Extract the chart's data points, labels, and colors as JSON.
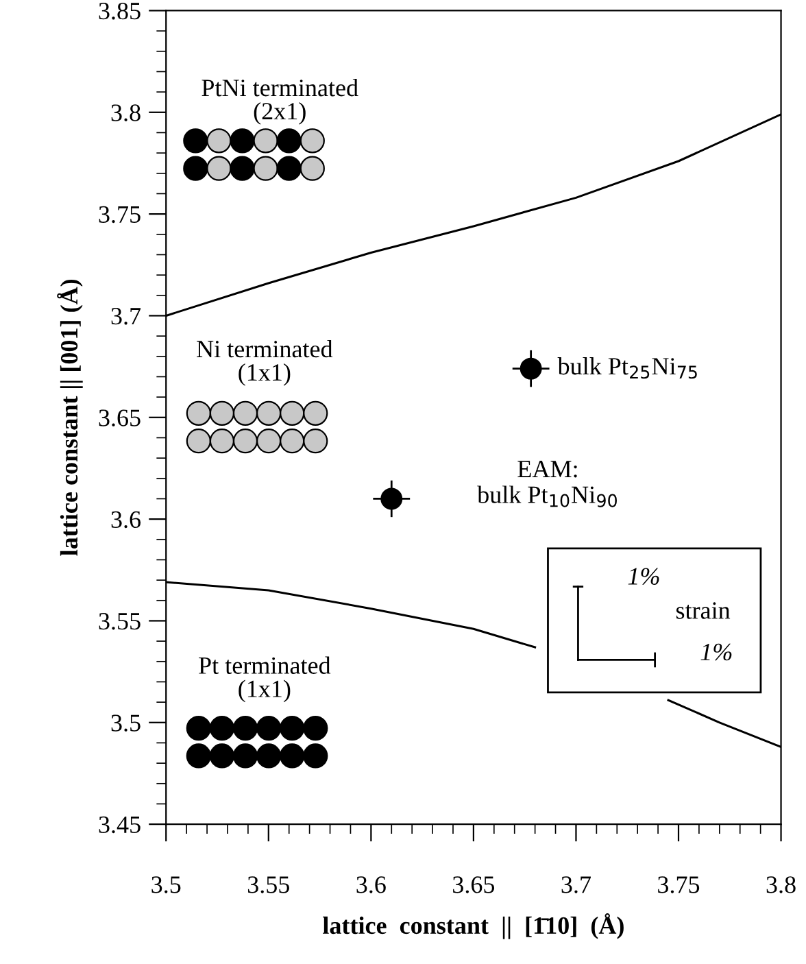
{
  "chart_data": {
    "type": "line",
    "xlabel": "lattice  constant  ||  [1̄10]  (Å)",
    "ylabel": "lattice constant || [001] (Å)",
    "xlim": [
      3.5,
      3.8
    ],
    "ylim": [
      3.45,
      3.85
    ],
    "xticks": [
      3.5,
      3.55,
      3.6,
      3.65,
      3.7,
      3.75,
      3.8
    ],
    "yticks": [
      3.45,
      3.5,
      3.55,
      3.6,
      3.65,
      3.7,
      3.75,
      3.8,
      3.85
    ],
    "grid": false,
    "legend": false,
    "series": [
      {
        "type": "line",
        "color": "#000000",
        "x": [
          3.5,
          3.55,
          3.6,
          3.65,
          3.7,
          3.75,
          3.8
        ],
        "values": [
          3.7,
          3.716,
          3.731,
          3.744,
          3.758,
          3.776,
          3.799
        ]
      },
      {
        "type": "line",
        "color": "#000000",
        "x": [
          3.5,
          3.55,
          3.6,
          3.65,
          3.68,
          3.71,
          3.745,
          3.77,
          3.8
        ],
        "values": [
          3.569,
          3.565,
          3.556,
          3.546,
          3.537,
          null,
          3.511,
          3.5,
          3.488
        ]
      },
      {
        "type": "scatter",
        "color": "#000000",
        "marker": "circle",
        "x": [
          3.61,
          3.678
        ],
        "values": [
          3.61,
          3.674
        ],
        "errors": [
          0.009,
          0.009
        ],
        "xerrors": [
          0.009,
          0.009
        ]
      }
    ],
    "annotations": [
      "PtNi terminated\n(2x1)",
      "Ni terminated\n(1x1)",
      "Pt terminated\n(1x1)",
      {
        "text": "bulk Pt$_{25}$Ni$_{75}$",
        "x": 3.678,
        "y": 3.674
      },
      "EAM:\nbulk Pt$_{10}$Ni$_{90}$",
      "1%",
      "strain",
      "1%"
    ]
  }
}
